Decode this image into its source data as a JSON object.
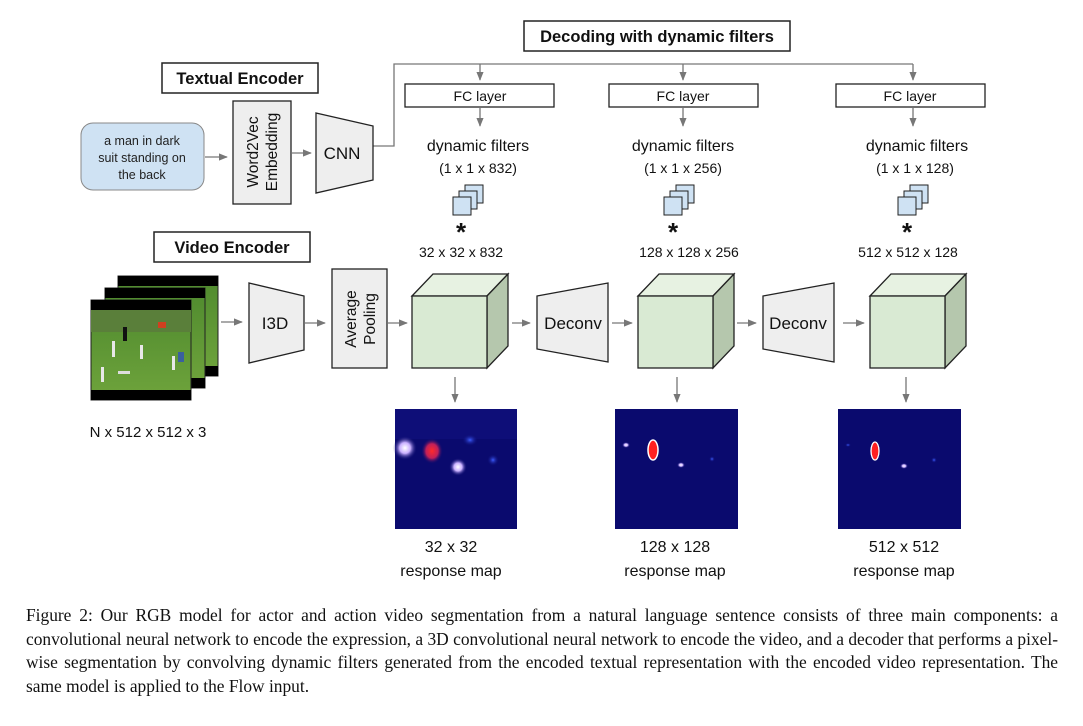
{
  "decoder": {
    "title": "Decoding with dynamic filters",
    "stages": [
      {
        "fc": "FC layer",
        "filters_label": "dynamic filters",
        "filters_size": "(1 x 1 x 832)",
        "conv_op": "*",
        "feature_size": "32 x 32 x 832",
        "map_size": "32 x 32",
        "map_label": "response map"
      },
      {
        "fc": "FC layer",
        "filters_label": "dynamic filters",
        "filters_size": "(1 x 1 x 256)",
        "conv_op": "*",
        "feature_size": "128 x 128 x 256",
        "map_size": "128 x 128",
        "map_label": "response map"
      },
      {
        "fc": "FC layer",
        "filters_label": "dynamic filters",
        "filters_size": "(1 x 1 x 128)",
        "conv_op": "*",
        "feature_size": "512 x 512 x 128",
        "map_size": "512 x 512",
        "map_label": "response map"
      }
    ],
    "deconv": [
      "Deconv",
      "Deconv"
    ]
  },
  "textual_encoder": {
    "title": "Textual Encoder",
    "sentence": [
      "a man in dark",
      "suit standing on",
      "the back"
    ],
    "embedding": [
      "Word2Vec",
      "Embedding"
    ],
    "cnn": "CNN"
  },
  "video_encoder": {
    "title": "Video Encoder",
    "input_size": "N x 512 x 512 x 3",
    "i3d": "I3D",
    "pooling": [
      "Average",
      "Pooling"
    ]
  },
  "caption": {
    "label": "Figure 2:",
    "text": "Our RGB model for actor and action video segmentation from a natural language sentence consists of three main components: a convolutional neural network to encode the expression, a 3D convolutional neural network to encode the video, and a decoder that performs a pixel-wise segmentation by convolving dynamic filters generated from the encoded textual representation with the encoded video representation. The same model is applied to the Flow input."
  },
  "colors": {
    "sentence_fill": "#cfe2f3",
    "cube_front": "#d9ead3",
    "cube_top": "#e7f2e2",
    "cube_side": "#b5c7ad",
    "block_fill": "#eeeeee",
    "filter_fill": "#cfe2f3",
    "map_bg": "#0a0a6e",
    "arrow": "#777777"
  }
}
